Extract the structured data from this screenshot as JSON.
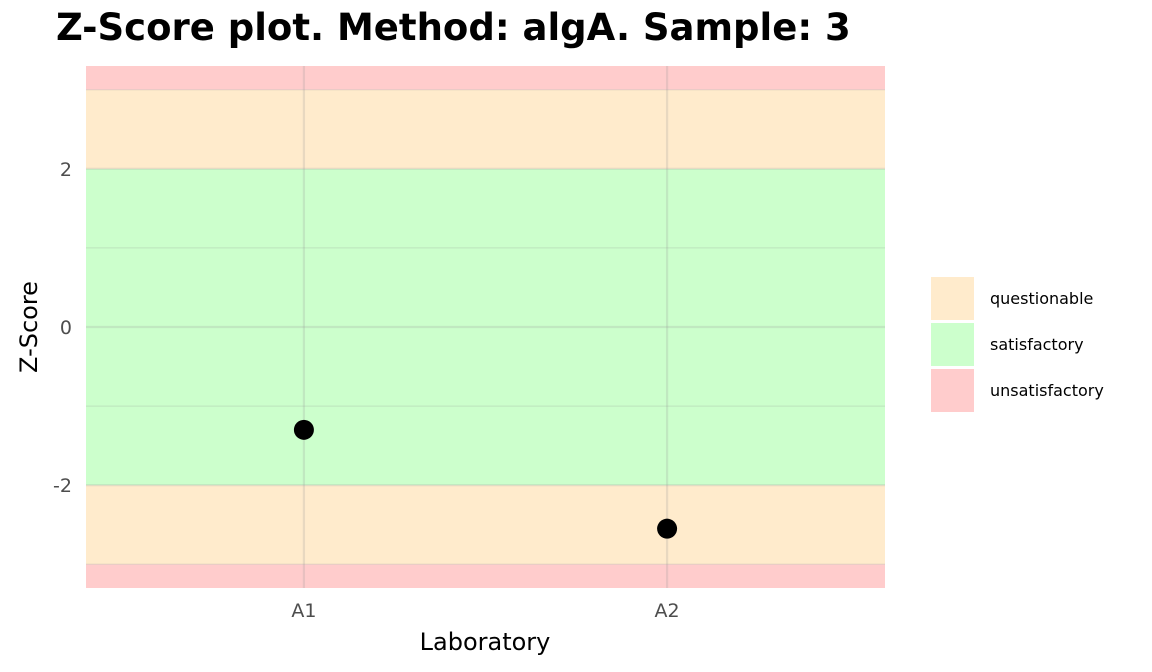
{
  "chart_data": {
    "type": "scatter",
    "title": "Z-Score plot. Method: algA. Sample: 3",
    "xlabel": "Laboratory",
    "ylabel": "Z-Score",
    "categories": [
      "A1",
      "A2"
    ],
    "values": [
      -1.3,
      -2.55
    ],
    "ylim": [
      -3.3,
      3.3
    ],
    "yticks": [
      -2,
      0,
      2
    ],
    "grid": true,
    "bands": [
      {
        "name": "unsatisfactory",
        "from": -3.3,
        "to": -3,
        "color": "#ffcccc"
      },
      {
        "name": "questionable",
        "from": -3,
        "to": -2,
        "color": "#ffebcc"
      },
      {
        "name": "satisfactory",
        "from": -2,
        "to": 2,
        "color": "#ccffcc"
      },
      {
        "name": "questionable",
        "from": 2,
        "to": 3,
        "color": "#ffebcc"
      },
      {
        "name": "unsatisfactory",
        "from": 3,
        "to": 3.3,
        "color": "#ffcccc"
      }
    ],
    "legend": {
      "position": "right",
      "entries": [
        {
          "label": "questionable",
          "color": "#ffebcc"
        },
        {
          "label": "satisfactory",
          "color": "#ccffcc"
        },
        {
          "label": "unsatisfactory",
          "color": "#ffcccc"
        }
      ]
    },
    "point_color": "#000000"
  }
}
